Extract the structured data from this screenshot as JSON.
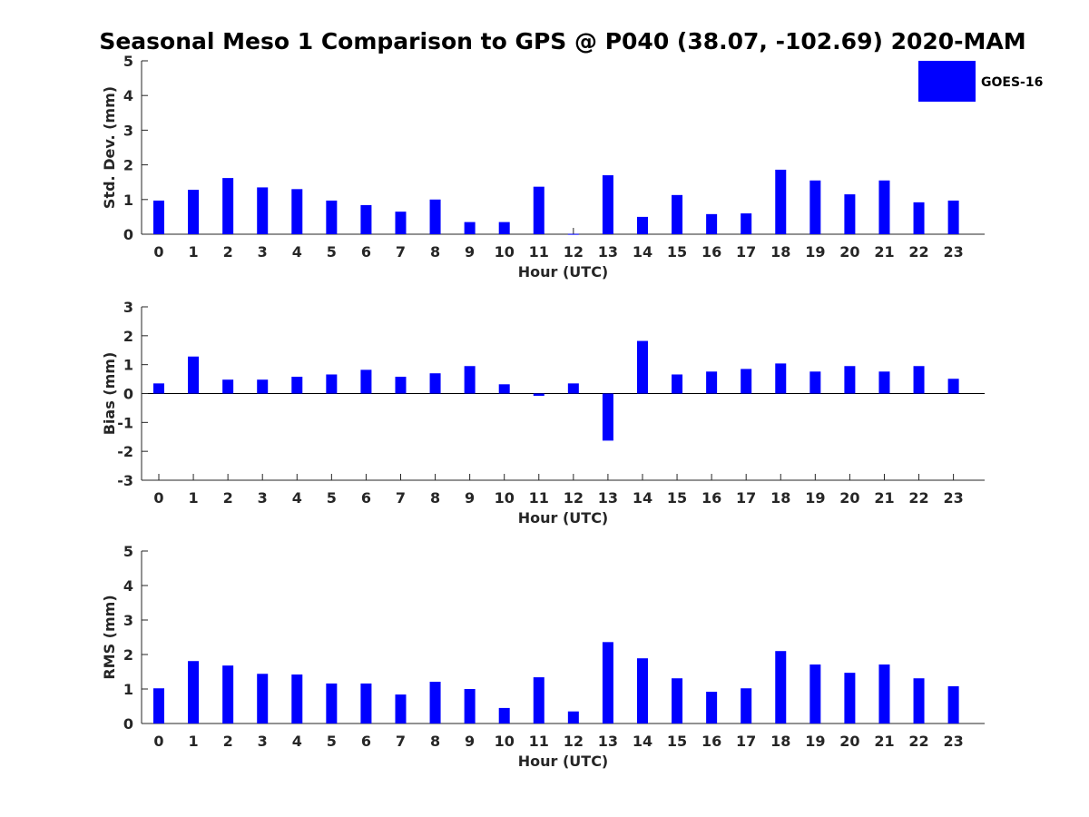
{
  "title": "Seasonal Meso 1 Comparison to GPS @ P040 (38.07, -102.69) 2020-MAM",
  "legend": {
    "label": "GOES-16",
    "color": "#0000ff"
  },
  "chart_data": [
    {
      "type": "bar",
      "categories": [
        "0",
        "1",
        "2",
        "3",
        "4",
        "5",
        "6",
        "7",
        "8",
        "9",
        "10",
        "11",
        "12",
        "13",
        "14",
        "15",
        "16",
        "17",
        "18",
        "19",
        "20",
        "21",
        "22",
        "23"
      ],
      "series": [
        {
          "name": "GOES-16",
          "color": "#0000ff",
          "values": [
            0.97,
            1.28,
            1.62,
            1.35,
            1.3,
            0.97,
            0.84,
            0.65,
            1.0,
            0.35,
            0.35,
            1.37,
            0.01,
            1.7,
            0.5,
            1.13,
            0.58,
            0.6,
            1.86,
            1.55,
            1.15,
            1.55,
            0.92,
            0.97
          ]
        }
      ],
      "xlabel": "Hour (UTC)",
      "ylabel": "Std. Dev. (mm)",
      "ylim": [
        0,
        5
      ],
      "yticks": [
        0,
        1,
        2,
        3,
        4,
        5
      ],
      "grid": false,
      "legend_position": "top-right"
    },
    {
      "type": "bar",
      "categories": [
        "0",
        "1",
        "2",
        "3",
        "4",
        "5",
        "6",
        "7",
        "8",
        "9",
        "10",
        "11",
        "12",
        "13",
        "14",
        "15",
        "16",
        "17",
        "18",
        "19",
        "20",
        "21",
        "22",
        "23"
      ],
      "series": [
        {
          "name": "GOES-16",
          "color": "#0000ff",
          "values": [
            0.35,
            1.28,
            0.48,
            0.48,
            0.58,
            0.66,
            0.82,
            0.58,
            0.7,
            0.95,
            0.32,
            -0.08,
            0.35,
            -1.63,
            1.82,
            0.66,
            0.76,
            0.85,
            1.04,
            0.76,
            0.95,
            0.76,
            0.95,
            0.51
          ]
        }
      ],
      "xlabel": "Hour (UTC)",
      "ylabel": "Bias (mm)",
      "ylim": [
        -3,
        3
      ],
      "yticks": [
        -3,
        -2,
        -1,
        0,
        1,
        2,
        3
      ],
      "grid": false
    },
    {
      "type": "bar",
      "categories": [
        "0",
        "1",
        "2",
        "3",
        "4",
        "5",
        "6",
        "7",
        "8",
        "9",
        "10",
        "11",
        "12",
        "13",
        "14",
        "15",
        "16",
        "17",
        "18",
        "19",
        "20",
        "21",
        "22",
        "23"
      ],
      "series": [
        {
          "name": "GOES-16",
          "color": "#0000ff",
          "values": [
            1.02,
            1.81,
            1.68,
            1.44,
            1.42,
            1.16,
            1.16,
            0.84,
            1.21,
            1.0,
            0.45,
            1.34,
            0.35,
            2.36,
            1.89,
            1.31,
            0.92,
            1.02,
            2.1,
            1.71,
            1.47,
            1.71,
            1.31,
            1.08
          ]
        }
      ],
      "xlabel": "Hour (UTC)",
      "ylabel": "RMS (mm)",
      "ylim": [
        0,
        5
      ],
      "yticks": [
        0,
        1,
        2,
        3,
        4,
        5
      ],
      "grid": false
    }
  ]
}
